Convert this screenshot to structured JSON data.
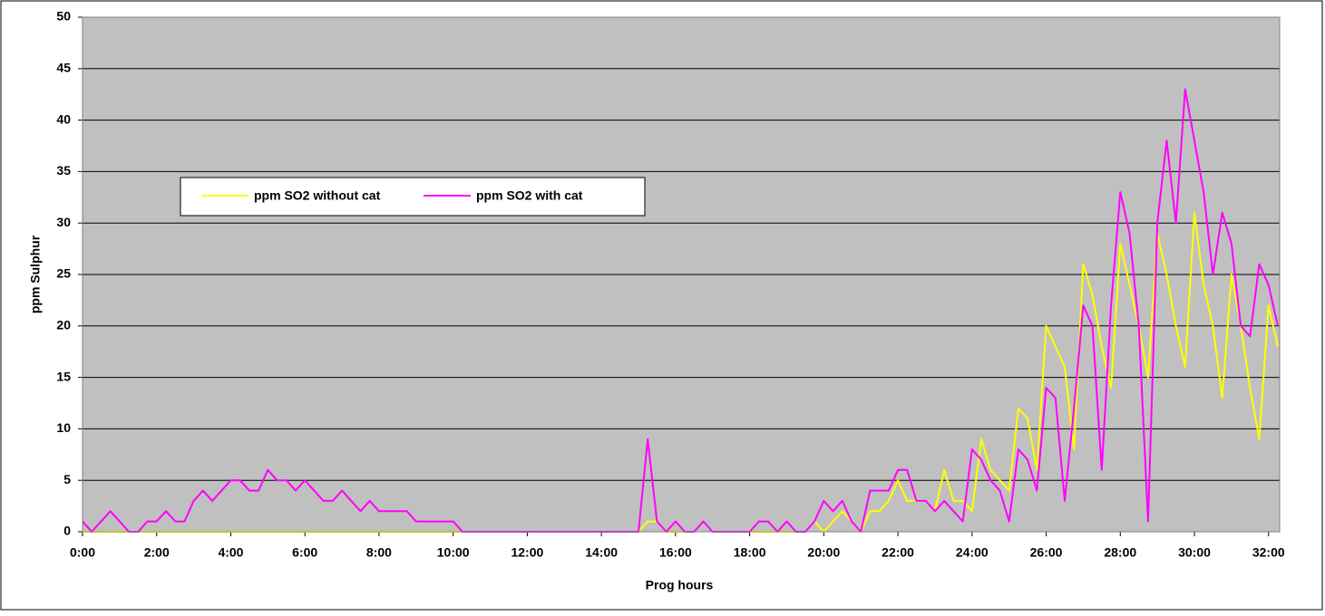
{
  "chart_data": {
    "type": "line",
    "y_label": "ppm Sulphur",
    "x_label": "Prog hours",
    "x": [
      0,
      0.25,
      0.5,
      0.75,
      1,
      1.25,
      1.5,
      1.75,
      2,
      2.25,
      2.5,
      2.75,
      3,
      3.25,
      3.5,
      3.75,
      4,
      4.25,
      4.5,
      4.75,
      5,
      5.25,
      5.5,
      5.75,
      6,
      6.25,
      6.5,
      6.75,
      7,
      7.25,
      7.5,
      7.75,
      8,
      8.25,
      8.5,
      8.75,
      9,
      9.25,
      9.5,
      9.75,
      10,
      10.25,
      10.5,
      10.75,
      11,
      11.25,
      11.5,
      11.75,
      12,
      12.25,
      12.5,
      12.75,
      13,
      13.25,
      13.5,
      13.75,
      14,
      14.25,
      14.5,
      14.75,
      15,
      15.25,
      15.5,
      15.75,
      16,
      16.25,
      16.5,
      16.75,
      17,
      17.25,
      17.5,
      17.75,
      18,
      18.25,
      18.5,
      18.75,
      19,
      19.25,
      19.5,
      19.75,
      20,
      20.25,
      20.5,
      20.75,
      21,
      21.25,
      21.5,
      21.75,
      22,
      22.25,
      22.5,
      22.75,
      23,
      23.25,
      23.5,
      23.75,
      24,
      24.25,
      24.5,
      24.75,
      25,
      25.25,
      25.5,
      25.75,
      26,
      26.25,
      26.5,
      26.75,
      27,
      27.25,
      27.5,
      27.75,
      28,
      28.25,
      28.5,
      28.75,
      29,
      29.25,
      29.5,
      29.75,
      30,
      30.25,
      30.5,
      30.75,
      31,
      31.25,
      31.5,
      31.75,
      32,
      32.25
    ],
    "series": [
      {
        "name": "ppm SO2 without cat",
        "color": "#ffff00",
        "values": [
          0,
          0,
          0,
          0,
          0,
          0,
          0,
          0,
          0,
          0,
          0,
          0,
          0,
          0,
          0,
          0,
          0,
          0,
          0,
          0,
          0,
          0,
          0,
          0,
          0,
          0,
          0,
          0,
          0,
          0,
          0,
          0,
          0,
          0,
          0,
          0,
          0,
          0,
          0,
          0,
          0,
          0,
          0,
          0,
          0,
          0,
          0,
          0,
          0,
          0,
          0,
          0,
          0,
          0,
          0,
          0,
          0,
          0,
          0,
          0,
          0,
          1,
          1,
          0,
          0,
          0,
          0,
          1,
          0,
          0,
          0,
          0,
          0,
          0,
          0,
          0,
          0,
          0,
          0,
          1,
          0,
          1,
          2,
          1,
          0,
          2,
          2,
          3,
          5,
          3,
          3,
          3,
          2,
          6,
          3,
          3,
          2,
          9,
          6,
          5,
          4,
          12,
          11,
          6,
          20,
          18,
          16,
          8,
          26,
          23,
          18,
          14,
          28,
          24,
          20,
          15,
          29,
          25,
          20,
          16,
          31,
          24,
          20,
          13,
          25,
          20,
          14,
          9,
          22,
          18
        ]
      },
      {
        "name": "ppm SO2 with cat",
        "color": "#ff00ff",
        "values": [
          1,
          0,
          1,
          2,
          1,
          0,
          0,
          1,
          1,
          2,
          1,
          1,
          3,
          4,
          3,
          4,
          5,
          5,
          4,
          4,
          6,
          5,
          5,
          4,
          5,
          4,
          3,
          3,
          4,
          3,
          2,
          3,
          2,
          2,
          2,
          2,
          1,
          1,
          1,
          1,
          1,
          0,
          0,
          0,
          0,
          0,
          0,
          0,
          0,
          0,
          0,
          0,
          0,
          0,
          0,
          0,
          0,
          0,
          0,
          0,
          0,
          9,
          1,
          0,
          1,
          0,
          0,
          1,
          0,
          0,
          0,
          0,
          0,
          1,
          1,
          0,
          1,
          0,
          0,
          1,
          3,
          2,
          3,
          1,
          0,
          4,
          4,
          4,
          6,
          6,
          3,
          3,
          2,
          3,
          2,
          1,
          8,
          7,
          5,
          4,
          1,
          8,
          7,
          4,
          14,
          13,
          3,
          12,
          22,
          20,
          6,
          22,
          33,
          29,
          20,
          1,
          30,
          38,
          30,
          43,
          38,
          33,
          25,
          31,
          28,
          20,
          19,
          26,
          24,
          20
        ]
      }
    ],
    "xlim": [
      0,
      32.3
    ],
    "xticks": [
      {
        "value": 0,
        "label": "0:00"
      },
      {
        "value": 2,
        "label": "2:00"
      },
      {
        "value": 4,
        "label": "4:00"
      },
      {
        "value": 6,
        "label": "6:00"
      },
      {
        "value": 8,
        "label": "8:00"
      },
      {
        "value": 10,
        "label": "10:00"
      },
      {
        "value": 12,
        "label": "12:00"
      },
      {
        "value": 14,
        "label": "14:00"
      },
      {
        "value": 16,
        "label": "16:00"
      },
      {
        "value": 18,
        "label": "18:00"
      },
      {
        "value": 20,
        "label": "20:00"
      },
      {
        "value": 22,
        "label": "22:00"
      },
      {
        "value": 24,
        "label": "24:00"
      },
      {
        "value": 26,
        "label": "26:00"
      },
      {
        "value": 28,
        "label": "28:00"
      },
      {
        "value": 30,
        "label": "30:00"
      },
      {
        "value": 32,
        "label": "32:00"
      }
    ],
    "ylim": [
      0,
      50
    ],
    "yticks": [
      0,
      5,
      10,
      15,
      20,
      25,
      30,
      35,
      40,
      45,
      50
    ],
    "grid": true
  }
}
